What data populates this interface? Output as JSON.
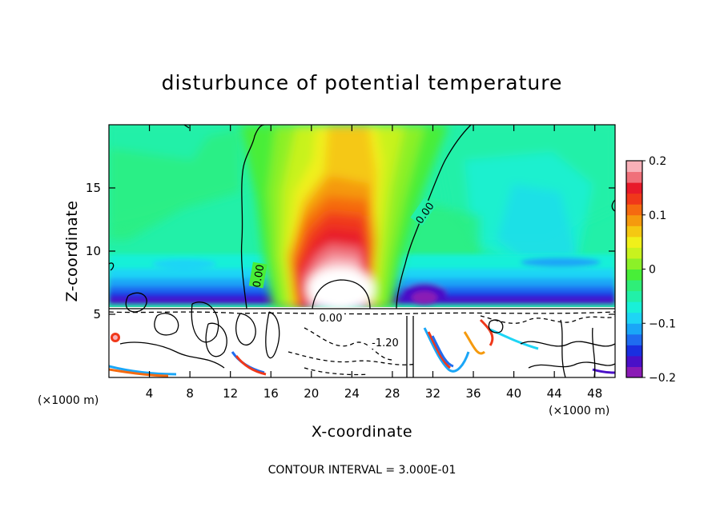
{
  "chart_data": {
    "type": "heatmap",
    "title": "disturbunce of potential temperature",
    "xlabel": "X-coordinate",
    "ylabel": "Z-coordinate",
    "x_unit": "(×1000 m)",
    "z_unit": "(×1000 m)",
    "xlim": [
      0,
      50
    ],
    "ylim": [
      0,
      20
    ],
    "x_ticks": [
      4,
      8,
      12,
      16,
      20,
      24,
      28,
      32,
      36,
      40,
      44,
      48
    ],
    "y_ticks": [
      5,
      10,
      15
    ],
    "colorbar": {
      "range": [
        -0.2,
        0.2
      ],
      "tick_values": [
        0.2,
        0.1,
        0,
        -0.1,
        -0.2
      ],
      "tick_labels": [
        "0.2",
        "0.1",
        "0",
        "−0.1",
        "−0.2"
      ],
      "colors": [
        "#8a1bb5",
        "#4a10c8",
        "#1a2fe0",
        "#1f6cf0",
        "#1aa6f7",
        "#1ed5f5",
        "#19f0d8",
        "#22f0a8",
        "#2fee78",
        "#48ee38",
        "#8cf028",
        "#c8f21e",
        "#f0f01a",
        "#f5c812",
        "#f59a0e",
        "#f56a10",
        "#f0381a",
        "#e81a2a",
        "#f0707a",
        "#f8b0b8"
      ]
    },
    "contour_labels": [
      "0.00",
      "0.00",
      "0.00",
      "-1.20"
    ],
    "footer": "CONTOUR INTERVAL = 3.000E-01"
  },
  "colors": {
    "background": "#ffffff",
    "ambient_field": "#22f0a8",
    "axis": "#000000"
  }
}
